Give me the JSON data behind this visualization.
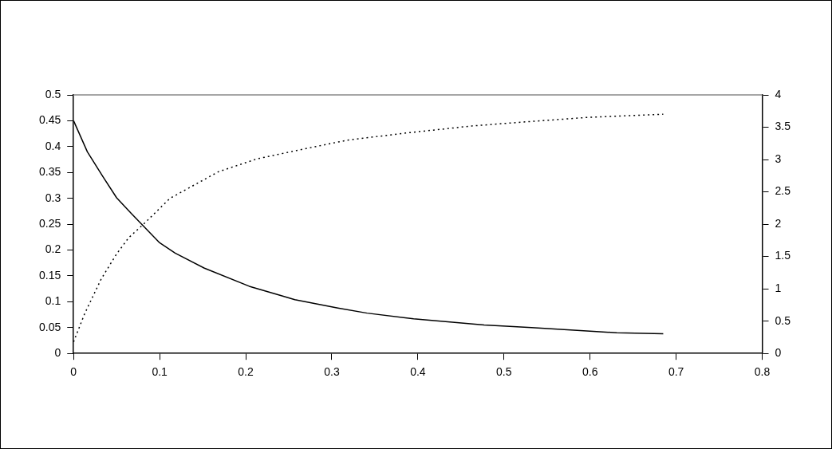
{
  "chart_data": {
    "type": "line",
    "xlim": [
      0,
      0.8
    ],
    "xticks": [
      0,
      0.1,
      0.2,
      0.3,
      0.4,
      0.5,
      0.6,
      0.7,
      0.8
    ],
    "ylim": [
      0,
      0.5
    ],
    "yticks": [
      0,
      0.05,
      0.1,
      0.15,
      0.2,
      0.25,
      0.3,
      0.35,
      0.4,
      0.45,
      0.5
    ],
    "y2lim": [
      0,
      4
    ],
    "y2ticks": [
      0,
      0.5,
      1,
      1.5,
      2,
      2.5,
      3,
      3.5,
      4
    ],
    "grid": false,
    "legend": false,
    "marker": "none",
    "series": [
      {
        "color": "#000000",
        "line_style": "solid",
        "x": [
          0,
          0.016,
          0.034,
          0.05,
          0.068,
          0.1,
          0.118,
          0.152,
          0.204,
          0.239,
          0.257,
          0.307,
          0.341,
          0.395,
          0.477,
          0.532,
          0.6,
          0.631,
          0.685
        ],
        "values": [
          0.45,
          0.39,
          0.342,
          0.301,
          0.269,
          0.214,
          0.194,
          0.165,
          0.13,
          0.113,
          0.104,
          0.088,
          0.078,
          0.067,
          0.055,
          0.05,
          0.043,
          0.04,
          0.038
        ]
      },
      {
        "color": "#000000",
        "line_style": "dotted",
        "axis": "y2",
        "x": [
          0,
          0.013,
          0.032,
          0.05,
          0.064,
          0.082,
          0.112,
          0.123,
          0.168,
          0.213,
          0.259,
          0.318,
          0.386,
          0.463,
          0.522,
          0.595,
          0.685
        ],
        "values": [
          0.18,
          0.62,
          1.15,
          1.54,
          1.79,
          2.01,
          2.4,
          2.48,
          2.81,
          3.01,
          3.14,
          3.3,
          3.41,
          3.52,
          3.58,
          3.65,
          3.7
        ]
      }
    ]
  }
}
